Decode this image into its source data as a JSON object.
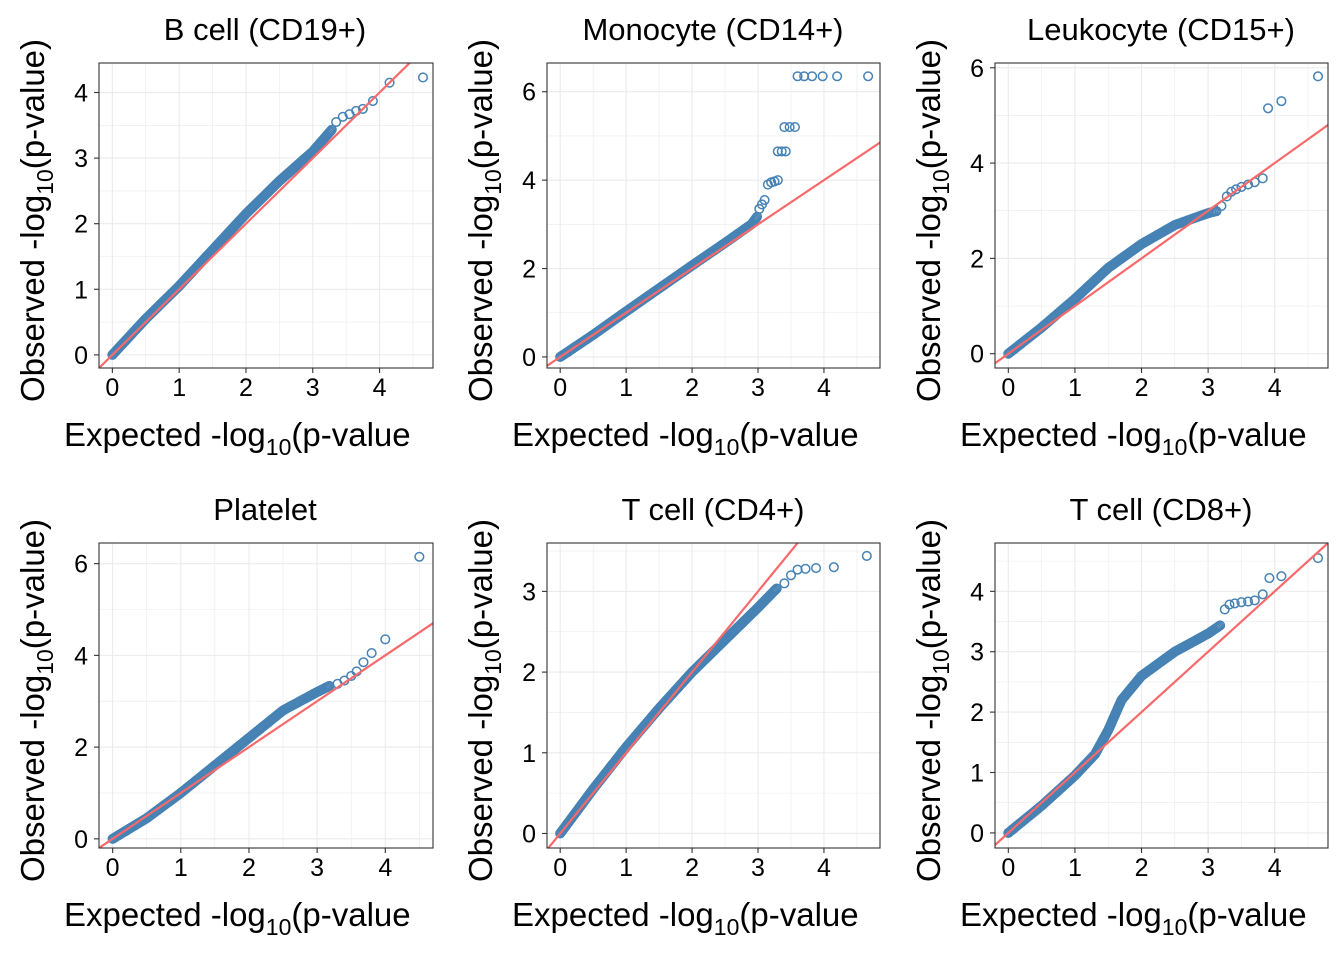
{
  "style": {
    "point_color": "#4682B4",
    "ref_line_color": "#F8696B",
    "grid_color": "#ebebeb",
    "panel_border": "#333333"
  },
  "chart_data": [
    {
      "type": "scatter",
      "title": "B cell (CD19+)",
      "xlabel_main": "Expected -log",
      "xlabel_sub": "10",
      "xlabel_end": "(p-value",
      "ylabel_main": "Observed -log",
      "ylabel_sub": "10",
      "ylabel_end": "(p-value)",
      "xlim": [
        -0.2,
        4.8
      ],
      "ylim": [
        -0.2,
        4.45
      ],
      "xticks": [
        0,
        1,
        2,
        3,
        4
      ],
      "yticks": [
        0,
        1,
        2,
        3,
        4
      ],
      "grid": true,
      "reference_line": "y = x",
      "curve": [
        [
          0,
          0
        ],
        [
          0.5,
          0.55
        ],
        [
          1,
          1.05
        ],
        [
          1.5,
          1.6
        ],
        [
          2,
          2.15
        ],
        [
          2.5,
          2.65
        ],
        [
          3,
          3.1
        ],
        [
          3.3,
          3.45
        ]
      ],
      "points": [
        [
          3.35,
          3.55
        ],
        [
          3.45,
          3.63
        ],
        [
          3.55,
          3.67
        ],
        [
          3.65,
          3.72
        ],
        [
          3.75,
          3.75
        ],
        [
          3.9,
          3.87
        ],
        [
          4.15,
          4.15
        ],
        [
          4.65,
          4.23
        ]
      ]
    },
    {
      "type": "scatter",
      "title": "Monocyte (CD14+)",
      "xlabel_main": "Expected -log",
      "xlabel_sub": "10",
      "xlabel_end": "(p-value",
      "ylabel_main": "Observed -log",
      "ylabel_sub": "10",
      "ylabel_end": "(p-value)",
      "xlim": [
        -0.2,
        4.85
      ],
      "ylim": [
        -0.25,
        6.65
      ],
      "xticks": [
        0,
        1,
        2,
        3,
        4
      ],
      "yticks": [
        0,
        2,
        4,
        6
      ],
      "grid": true,
      "reference_line": "y = x",
      "curve": [
        [
          0,
          0
        ],
        [
          0.5,
          0.5
        ],
        [
          1,
          1.03
        ],
        [
          1.5,
          1.55
        ],
        [
          2,
          2.07
        ],
        [
          2.5,
          2.58
        ],
        [
          2.9,
          3.0
        ],
        [
          3.0,
          3.2
        ]
      ],
      "points": [
        [
          3.02,
          3.35
        ],
        [
          3.06,
          3.45
        ],
        [
          3.1,
          3.55
        ],
        [
          3.15,
          3.9
        ],
        [
          3.2,
          3.95
        ],
        [
          3.25,
          3.97
        ],
        [
          3.3,
          4.0
        ],
        [
          3.3,
          4.65
        ],
        [
          3.36,
          4.65
        ],
        [
          3.42,
          4.65
        ],
        [
          3.4,
          5.2
        ],
        [
          3.48,
          5.2
        ],
        [
          3.56,
          5.2
        ],
        [
          3.6,
          6.35
        ],
        [
          3.7,
          6.35
        ],
        [
          3.82,
          6.35
        ],
        [
          3.98,
          6.35
        ],
        [
          4.2,
          6.35
        ],
        [
          4.67,
          6.35
        ]
      ]
    },
    {
      "type": "scatter",
      "title": "Leukocyte (CD15+)",
      "xlabel_main": "Expected -log",
      "xlabel_sub": "10",
      "xlabel_end": "(p-value",
      "ylabel_main": "Observed -log",
      "ylabel_sub": "10",
      "ylabel_end": "(p-value)",
      "xlim": [
        -0.2,
        4.8
      ],
      "ylim": [
        -0.3,
        6.1
      ],
      "xticks": [
        0,
        1,
        2,
        3,
        4
      ],
      "yticks": [
        0,
        2,
        4,
        6
      ],
      "grid": true,
      "reference_line": "y = x",
      "curve": [
        [
          0,
          0
        ],
        [
          0.5,
          0.55
        ],
        [
          1,
          1.15
        ],
        [
          1.5,
          1.8
        ],
        [
          2,
          2.3
        ],
        [
          2.5,
          2.7
        ],
        [
          3,
          2.95
        ],
        [
          3.15,
          3.0
        ]
      ],
      "points": [
        [
          3.2,
          3.1
        ],
        [
          3.28,
          3.3
        ],
        [
          3.35,
          3.4
        ],
        [
          3.42,
          3.45
        ],
        [
          3.5,
          3.5
        ],
        [
          3.6,
          3.55
        ],
        [
          3.7,
          3.6
        ],
        [
          3.82,
          3.68
        ],
        [
          3.9,
          5.15
        ],
        [
          4.1,
          5.3
        ],
        [
          4.65,
          5.82
        ]
      ]
    },
    {
      "type": "scatter",
      "title": "Platelet",
      "xlabel_main": "Expected -log",
      "xlabel_sub": "10",
      "xlabel_end": "(p-value",
      "ylabel_main": "Observed -log",
      "ylabel_sub": "10",
      "ylabel_end": "(p-value)",
      "xlim": [
        -0.2,
        4.7
      ],
      "ylim": [
        -0.2,
        6.45
      ],
      "xticks": [
        0,
        1,
        2,
        3,
        4
      ],
      "yticks": [
        0,
        2,
        4,
        6
      ],
      "grid": true,
      "reference_line": "y = x",
      "curve": [
        [
          0,
          0
        ],
        [
          0.5,
          0.45
        ],
        [
          1,
          1.0
        ],
        [
          1.5,
          1.6
        ],
        [
          2,
          2.2
        ],
        [
          2.5,
          2.8
        ],
        [
          3,
          3.2
        ],
        [
          3.2,
          3.35
        ]
      ],
      "points": [
        [
          3.3,
          3.38
        ],
        [
          3.4,
          3.45
        ],
        [
          3.5,
          3.55
        ],
        [
          3.58,
          3.65
        ],
        [
          3.68,
          3.85
        ],
        [
          3.8,
          4.05
        ],
        [
          4.0,
          4.35
        ],
        [
          4.5,
          6.15
        ]
      ]
    },
    {
      "type": "scatter",
      "title": "T cell (CD4+)",
      "xlabel_main": "Expected -log",
      "xlabel_sub": "10",
      "xlabel_end": "(p-value",
      "ylabel_main": "Observed -log",
      "ylabel_sub": "10",
      "ylabel_end": "(p-value)",
      "xlim": [
        -0.2,
        4.85
      ],
      "ylim": [
        -0.18,
        3.6
      ],
      "xticks": [
        0,
        1,
        2,
        3,
        4
      ],
      "yticks": [
        0,
        1,
        2,
        3
      ],
      "grid": true,
      "reference_line": "y = x",
      "curve": [
        [
          0,
          0
        ],
        [
          0.5,
          0.55
        ],
        [
          1,
          1.07
        ],
        [
          1.5,
          1.55
        ],
        [
          2,
          2.0
        ],
        [
          2.5,
          2.4
        ],
        [
          3,
          2.8
        ],
        [
          3.3,
          3.05
        ]
      ],
      "points": [
        [
          3.4,
          3.1
        ],
        [
          3.5,
          3.2
        ],
        [
          3.6,
          3.27
        ],
        [
          3.72,
          3.28
        ],
        [
          3.88,
          3.29
        ],
        [
          4.15,
          3.3
        ],
        [
          4.65,
          3.44
        ]
      ]
    },
    {
      "type": "scatter",
      "title": "T cell (CD8+)",
      "xlabel_main": "Expected -log",
      "xlabel_sub": "10",
      "xlabel_end": "(p-value",
      "ylabel_main": "Observed -log",
      "ylabel_sub": "10",
      "ylabel_end": "(p-value)",
      "xlim": [
        -0.2,
        4.8
      ],
      "ylim": [
        -0.25,
        4.8
      ],
      "xticks": [
        0,
        1,
        2,
        3,
        4
      ],
      "yticks": [
        0,
        1,
        2,
        3,
        4
      ],
      "grid": true,
      "reference_line": "y = x",
      "curve": [
        [
          0,
          0
        ],
        [
          0.5,
          0.45
        ],
        [
          1,
          0.95
        ],
        [
          1.3,
          1.3
        ],
        [
          1.5,
          1.7
        ],
        [
          1.7,
          2.2
        ],
        [
          2,
          2.6
        ],
        [
          2.5,
          3.0
        ],
        [
          3,
          3.3
        ],
        [
          3.2,
          3.45
        ]
      ],
      "points": [
        [
          3.25,
          3.7
        ],
        [
          3.32,
          3.78
        ],
        [
          3.4,
          3.8
        ],
        [
          3.5,
          3.82
        ],
        [
          3.6,
          3.83
        ],
        [
          3.7,
          3.85
        ],
        [
          3.82,
          3.95
        ],
        [
          3.92,
          4.22
        ],
        [
          4.1,
          4.25
        ],
        [
          4.65,
          4.55
        ]
      ]
    }
  ]
}
